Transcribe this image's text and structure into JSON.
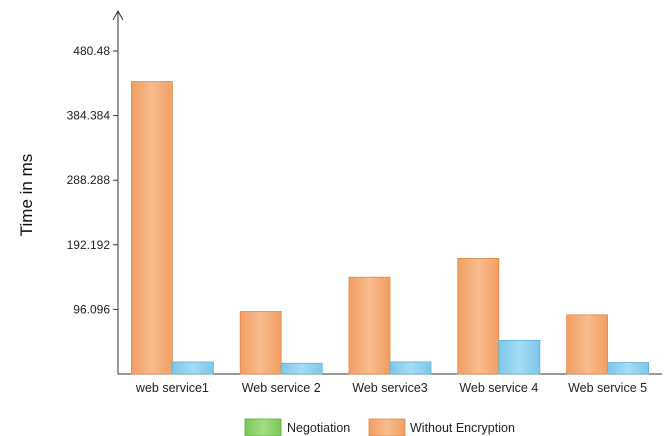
{
  "chart_data": {
    "type": "bar",
    "title": "",
    "xlabel": "",
    "ylabel": "Time in ms",
    "ylim": [
      0,
      480.48
    ],
    "yticks": [
      "96.096",
      "192.192",
      "288.288",
      "384.384",
      "480.48"
    ],
    "ytick_values": [
      96.096,
      192.192,
      288.288,
      384.384,
      480.48
    ],
    "grid": false,
    "legend_position": "bottom",
    "categories": [
      "web service1",
      "Web service 2",
      "Web service3",
      "Web service 4",
      "Web service 5"
    ],
    "series": [
      {
        "name": "Negotiation",
        "color": "#8fd16a",
        "values": [
          0,
          0,
          0,
          0,
          0
        ]
      },
      {
        "name": "Without Encryption",
        "color": "#f6b07c",
        "values": [
          435,
          93,
          144,
          172,
          88
        ]
      },
      {
        "color": "#90d0ee",
        "values": [
          18,
          16,
          18,
          50,
          17
        ]
      }
    ]
  }
}
